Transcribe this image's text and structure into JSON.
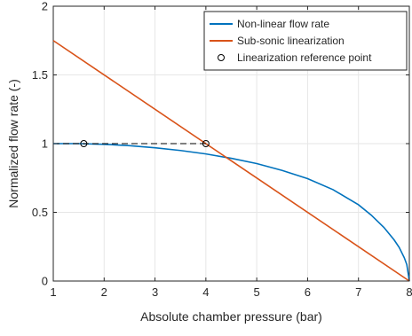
{
  "chart_data": {
    "type": "line",
    "title": "",
    "xlabel": "Absolute chamber pressure (bar)",
    "ylabel": "Normalized flow rate (-)",
    "xlim": [
      1,
      8
    ],
    "ylim": [
      0,
      2
    ],
    "xticks": [
      1,
      2,
      3,
      4,
      5,
      6,
      7,
      8
    ],
    "yticks": [
      0,
      0.5,
      1,
      1.5,
      2
    ],
    "xtick_labels": [
      "1",
      "2",
      "3",
      "4",
      "5",
      "6",
      "7",
      "8"
    ],
    "ytick_labels": [
      "0",
      "0.5",
      "1",
      "1.5",
      "2"
    ],
    "grid": true,
    "legend_position": "top-right",
    "series": [
      {
        "name": "Non-linear flow rate",
        "color": "#0072BD",
        "style": "solid",
        "x": [
          1,
          1.5,
          2,
          2.5,
          3,
          3.5,
          4,
          4.5,
          5,
          5.5,
          6,
          6.5,
          7,
          7.25,
          7.5,
          7.7,
          7.8,
          7.9,
          7.95,
          8
        ],
        "y": [
          1.0,
          1.0,
          0.995,
          0.985,
          0.97,
          0.95,
          0.925,
          0.893,
          0.855,
          0.805,
          0.745,
          0.665,
          0.555,
          0.48,
          0.39,
          0.3,
          0.245,
          0.17,
          0.12,
          0
        ]
      },
      {
        "name": "Sub-sonic linearization",
        "color": "#D95319",
        "style": "solid",
        "x": [
          1,
          8
        ],
        "y": [
          1.75,
          0
        ]
      },
      {
        "name": "",
        "color": "#000000",
        "style": "dashed",
        "x": [
          1,
          4
        ],
        "y": [
          1,
          1
        ]
      }
    ],
    "reference_points": {
      "name": "Linearization reference point",
      "marker": "circle",
      "x": [
        1.6,
        4
      ],
      "y": [
        1,
        1
      ]
    }
  }
}
